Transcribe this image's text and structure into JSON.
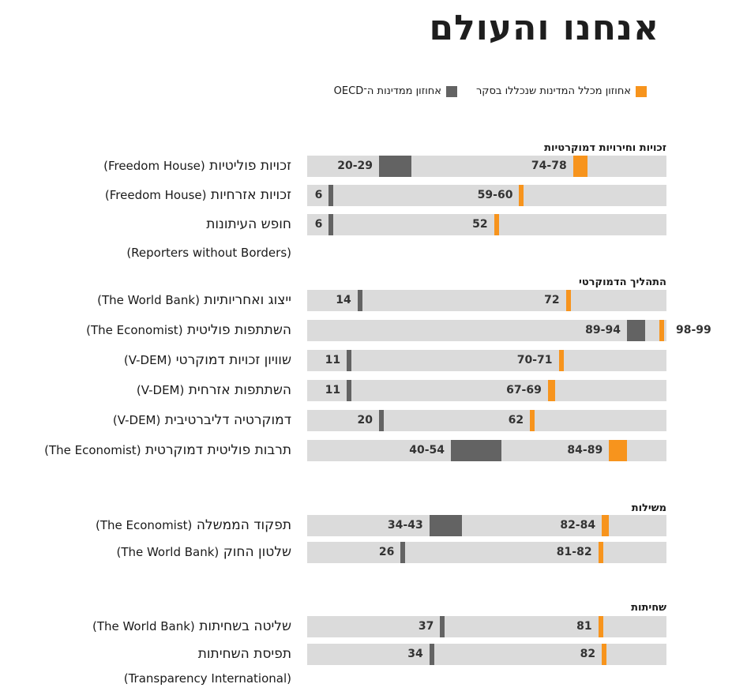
{
  "page": {
    "title": "אנחנו והעולם"
  },
  "legend": {
    "all_countries": "אחוזון מכלל המדינות שנכללו בסקר",
    "oecd": "אחוזון ממדינות ה־OECD"
  },
  "colors": {
    "all_countries": "#f7941d",
    "oecd": "#636363",
    "track": "#dbdbdb"
  },
  "chart_data": {
    "type": "bar",
    "xlim": [
      0,
      100
    ],
    "series": [
      {
        "name": "אחוזון מכלל המדינות שנכללו בסקר",
        "key": "all"
      },
      {
        "name": "אחוזון ממדינות ה־OECD",
        "key": "oecd"
      }
    ],
    "sections": [
      {
        "title": "זכויות וחירויות דמוקרטיות",
        "rows": [
          {
            "label": "זכויות פוליטיות",
            "source": "(Freedom House)",
            "source_on_second_line": false,
            "all": [
              74,
              78
            ],
            "all_label": "74-78",
            "oecd": [
              20,
              29
            ],
            "oecd_label": "20-29"
          },
          {
            "label": "זכויות אזרחיות",
            "source": "(Freedom House)",
            "source_on_second_line": false,
            "all": [
              59,
              60
            ],
            "all_label": "59-60",
            "oecd": [
              6,
              6
            ],
            "oecd_label": "6"
          },
          {
            "label": "חופש העיתונות",
            "source": "(Reporters without Borders)",
            "source_on_second_line": true,
            "all": [
              52,
              52
            ],
            "all_label": "52",
            "oecd": [
              6,
              6
            ],
            "oecd_label": "6"
          }
        ]
      },
      {
        "title": "התהליך הדמוקרטי",
        "rows": [
          {
            "label": "ייצוג ואחריותיות",
            "source": "(The World Bank)",
            "source_on_second_line": false,
            "all": [
              72,
              72
            ],
            "all_label": "72",
            "oecd": [
              14,
              14
            ],
            "oecd_label": "14"
          },
          {
            "label": "השתתפות פוליטית",
            "source": "(The Economist)",
            "source_on_second_line": false,
            "all": [
              98,
              99
            ],
            "all_label": "98-99",
            "oecd": [
              89,
              94
            ],
            "oecd_label": "89-94",
            "all_label_outside": true
          },
          {
            "label": "שוויון זכויות דמוקרטי",
            "source": "(V-DEM)",
            "source_on_second_line": false,
            "all": [
              70,
              71
            ],
            "all_label": "70-71",
            "oecd": [
              11,
              11
            ],
            "oecd_label": "11"
          },
          {
            "label": "השתתפות אזרחית",
            "source": "(V-DEM)",
            "source_on_second_line": false,
            "all": [
              67,
              69
            ],
            "all_label": "67-69",
            "oecd": [
              11,
              11
            ],
            "oecd_label": "11"
          },
          {
            "label": "דמוקרטיה דליברטיבית",
            "source": "(V-DEM)",
            "source_on_second_line": false,
            "all": [
              62,
              62
            ],
            "all_label": "62",
            "oecd": [
              20,
              20
            ],
            "oecd_label": "20"
          },
          {
            "label": "תרבות פוליטית דמוקרטית",
            "source": "(The Economist)",
            "source_on_second_line": false,
            "all": [
              84,
              89
            ],
            "all_label": "84-89",
            "oecd": [
              40,
              54
            ],
            "oecd_label": "40-54"
          }
        ]
      },
      {
        "title": "משילות",
        "rows": [
          {
            "label": "תפקוד הממשלה",
            "source": "(The Economist)",
            "source_on_second_line": false,
            "all": [
              82,
              84
            ],
            "all_label": "82-84",
            "oecd": [
              34,
              43
            ],
            "oecd_label": "34-43"
          },
          {
            "label": "שלטון החוק",
            "source": "(The World Bank)",
            "source_on_second_line": false,
            "all": [
              81,
              82
            ],
            "all_label": "81-82",
            "oecd": [
              26,
              26
            ],
            "oecd_label": "26"
          }
        ]
      },
      {
        "title": "שחיתות",
        "rows": [
          {
            "label": "שליטה בשחיתות",
            "source": "(The World Bank)",
            "source_on_second_line": false,
            "all": [
              81,
              81
            ],
            "all_label": "81",
            "oecd": [
              37,
              37
            ],
            "oecd_label": "37"
          },
          {
            "label": "תפיסת השחיתות",
            "source": "(Transparency International)",
            "source_on_second_line": true,
            "all": [
              82,
              82
            ],
            "all_label": "82",
            "oecd": [
              34,
              34
            ],
            "oecd_label": "34"
          }
        ]
      }
    ]
  }
}
